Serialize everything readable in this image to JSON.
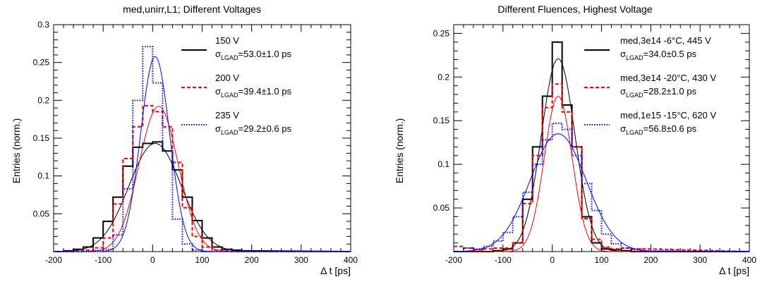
{
  "chart_data": [
    {
      "type": "histogram",
      "title": "med,unirr,L1; Different Voltages",
      "xlabel": "Δ t [ps]",
      "ylabel": "Entries (norm.)",
      "xlim": [
        -200,
        400
      ],
      "ylim": [
        0,
        0.3
      ],
      "xticks": [
        "-200",
        "-100",
        "0",
        "100",
        "200",
        "300",
        "400"
      ],
      "yticks": [
        "0.05",
        "0.1",
        "0.15",
        "0.2",
        "0.25",
        "0.3"
      ],
      "legend_position": "top-right",
      "bin_edges": [
        -200,
        -180,
        -160,
        -140,
        -120,
        -100,
        -80,
        -60,
        -40,
        -20,
        0,
        20,
        40,
        60,
        80,
        100,
        120,
        140,
        160,
        180,
        200
      ],
      "series": [
        {
          "name": "150 V",
          "sigma_label": "=53.0±1.0 ps",
          "color": "#000000",
          "style": "solid",
          "values": [
            0,
            0.001,
            0.003,
            0.006,
            0.018,
            0.04,
            0.072,
            0.113,
            0.138,
            0.143,
            0.145,
            0.133,
            0.108,
            0.072,
            0.041,
            0.018,
            0.006,
            0.003,
            0.002,
            0.001
          ],
          "fit": {
            "mu": 5,
            "sigma": 53.0,
            "amp": 0.143
          }
        },
        {
          "name": "200 V",
          "sigma_label": "=39.4±1.0 ps",
          "color": "#ff0000",
          "style": "dashed",
          "values": [
            0,
            0,
            0.001,
            0.002,
            0.005,
            0.018,
            0.063,
            0.123,
            0.165,
            0.193,
            0.185,
            0.165,
            0.118,
            0.058,
            0.02,
            0.006,
            0.002,
            0.001,
            0,
            0
          ],
          "fit": {
            "mu": 12,
            "sigma": 39.4,
            "amp": 0.192
          }
        },
        {
          "name": "235 V",
          "sigma_label": "=29.2±0.6 ps",
          "color": "#0000ff",
          "style": "dotted",
          "values": [
            0,
            0,
            0,
            0,
            0.001,
            0.003,
            0.022,
            0.083,
            0.2,
            0.271,
            0.223,
            0.133,
            0.043,
            0.01,
            0.002,
            0,
            0,
            0,
            0,
            0
          ],
          "fit": {
            "mu": 5,
            "sigma": 29.2,
            "amp": 0.258
          }
        }
      ]
    },
    {
      "type": "histogram",
      "title": "Different Fluences, Highest Voltage",
      "xlabel": "Δ t [ps]",
      "ylabel": "Entries (norm.)",
      "xlim": [
        -200,
        400
      ],
      "ylim": [
        0,
        0.26
      ],
      "xticks": [
        "-200",
        "-100",
        "0",
        "100",
        "200",
        "300",
        "400"
      ],
      "yticks": [
        "0.05",
        "0.1",
        "0.15",
        "0.2",
        "0.25"
      ],
      "legend_position": "top-right",
      "bin_edges": [
        -200,
        -180,
        -160,
        -140,
        -120,
        -100,
        -80,
        -60,
        -40,
        -20,
        0,
        20,
        40,
        60,
        80,
        100,
        120,
        140,
        160,
        180,
        200
      ],
      "series": [
        {
          "name": "med,3e14 -6°C, 445 V",
          "sigma_label": "=34.0±0.5 ps",
          "color": "#000000",
          "style": "solid",
          "values": [
            0,
            0,
            0,
            0,
            0.001,
            0.003,
            0.01,
            0.06,
            0.12,
            0.178,
            0.24,
            0.168,
            0.12,
            0.04,
            0.01,
            0.003,
            0.002,
            0.001,
            0,
            0
          ],
          "fit": {
            "mu": 12,
            "sigma": 34.0,
            "amp": 0.221
          }
        },
        {
          "name": "med,3e14 -20°C, 430 V",
          "sigma_label": "=28.2±1.0 ps",
          "color": "#ff0000",
          "style": "dashed",
          "values": [
            0.006,
            0.004,
            0.002,
            0.003,
            0.004,
            0.004,
            0.01,
            0.055,
            0.11,
            0.165,
            0.192,
            0.16,
            0.12,
            0.038,
            0.014,
            0.005,
            0.003,
            0.004,
            0.003,
            0.003
          ],
          "fit": {
            "mu": 12,
            "sigma": 28.2,
            "amp": 0.178
          }
        },
        {
          "name": "med,1e15 -15°C, 620 V",
          "sigma_label": "=56.8±0.6 ps",
          "color": "#0000ff",
          "style": "dotted",
          "values": [
            0,
            0.004,
            0.003,
            0.006,
            0.012,
            0.022,
            0.04,
            0.068,
            0.1,
            0.128,
            0.147,
            0.14,
            0.11,
            0.078,
            0.047,
            0.02,
            0.009,
            0.004,
            0.002,
            0.001
          ],
          "fit": {
            "mu": 12,
            "sigma": 56.8,
            "amp": 0.135
          }
        }
      ]
    }
  ]
}
